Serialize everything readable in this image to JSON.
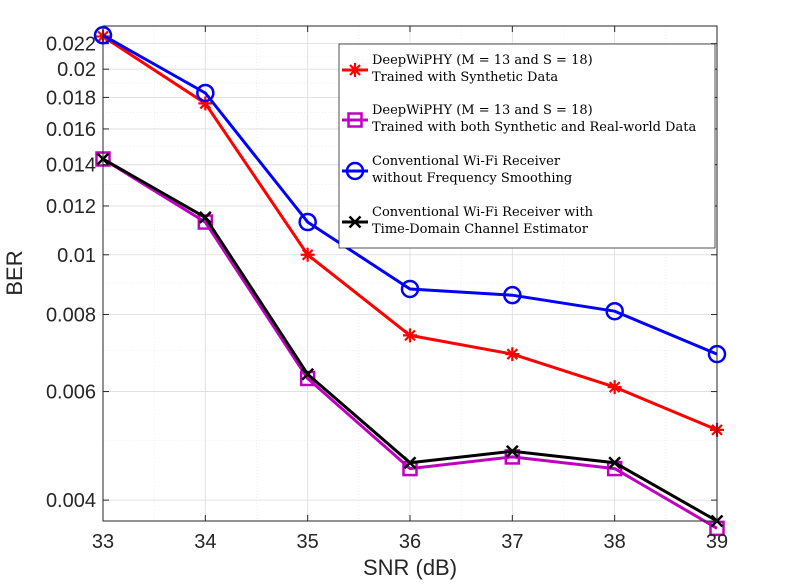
{
  "chart_data": {
    "type": "line",
    "xlabel": "SNR (dB)",
    "ylabel": "BER",
    "yscale": "log",
    "xlim": [
      33,
      39
    ],
    "ylim": [
      0.0037,
      0.0235
    ],
    "x": [
      33,
      34,
      35,
      36,
      37,
      38,
      39
    ],
    "xticks": [
      "33",
      "34",
      "35",
      "36",
      "37",
      "38",
      "39"
    ],
    "yticks": [
      {
        "value": 0.004,
        "label": "0.004"
      },
      {
        "value": 0.006,
        "label": "0.006"
      },
      {
        "value": 0.008,
        "label": "0.008"
      },
      {
        "value": 0.01,
        "label": "0.01"
      },
      {
        "value": 0.012,
        "label": "0.012"
      },
      {
        "value": 0.014,
        "label": "0.014"
      },
      {
        "value": 0.016,
        "label": "0.016"
      },
      {
        "value": 0.018,
        "label": "0.018"
      },
      {
        "value": 0.02,
        "label": "0.02"
      },
      {
        "value": 0.022,
        "label": "0.022"
      }
    ],
    "grid": true,
    "legend_position": "top-right",
    "series": [
      {
        "name": "DeepWiPHY (M = 13 and S = 18) Trained with Synthetic Data",
        "legend_line1": "DeepWiPHY (M = 13 and S = 18)",
        "legend_line2": "Trained with Synthetic Data",
        "color": "#ff0000",
        "marker": "asterisk",
        "values": [
          0.0226,
          0.0176,
          0.01,
          0.0074,
          0.0069,
          0.0061,
          0.0052
        ]
      },
      {
        "name": "DeepWiPHY (M = 13 and S = 18) Trained with both Synthetic and Real-world Data",
        "legend_line1": "DeepWiPHY (M = 13 and S = 18)",
        "legend_line2": "Trained with both Synthetic and Real-world Data",
        "color": "#c000c0",
        "marker": "square",
        "values": [
          0.0143,
          0.0113,
          0.0063,
          0.0045,
          0.0047,
          0.0045,
          0.0036
        ]
      },
      {
        "name": "Conventional Wi-Fi Receiver without Frequency Smoothing",
        "legend_line1": "Conventional Wi-Fi Receiver",
        "legend_line2": "without Frequency Smoothing",
        "color": "#0000ff",
        "marker": "circle",
        "values": [
          0.0227,
          0.0183,
          0.0113,
          0.0088,
          0.0086,
          0.0081,
          0.0069
        ]
      },
      {
        "name": "Conventional Wi-Fi Receiver with Time-Domain Channel Estimator",
        "legend_line1": "Conventional Wi-Fi Receiver with",
        "legend_line2": "Time-Domain Channel Estimator",
        "color": "#000000",
        "marker": "cross",
        "values": [
          0.0143,
          0.0115,
          0.0064,
          0.0046,
          0.0048,
          0.0046,
          0.0037
        ]
      }
    ]
  }
}
